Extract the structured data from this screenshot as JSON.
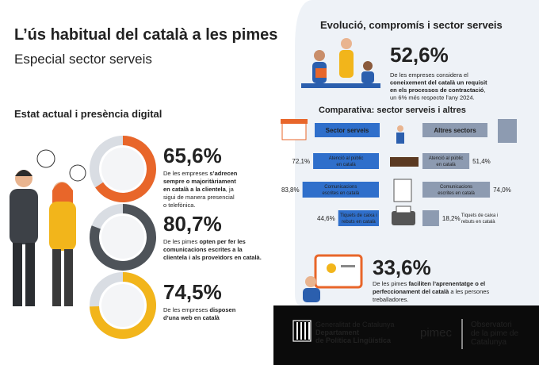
{
  "header": {
    "title": "L’ús habitual del català a les pimes",
    "subtitle": "Especial sector serveis"
  },
  "left": {
    "heading": "Estat actual i presència digital",
    "stats": [
      {
        "value": {
          "value": 65.6,
          "label": "65,6%"
        },
        "color": "#e8662a",
        "lines": [
          [
            {
              "text": "De les empreses ",
              "bold": false
            },
            {
              "text": "s’adrecen",
              "bold": true
            }
          ],
          [
            {
              "text": "sempre o majoritàriament",
              "bold": true
            }
          ],
          [
            {
              "text": "en català a la clientela",
              "bold": true
            },
            {
              "text": ", ja",
              "bold": false
            }
          ],
          [
            {
              "text": "sigui de manera presencial",
              "bold": false
            }
          ],
          [
            {
              "text": "o telefònica.",
              "bold": false
            }
          ]
        ]
      },
      {
        "value": {
          "value": 80.7,
          "label": "80,7%"
        },
        "color": "#4e5359",
        "lines": [
          [
            {
              "text": "De les pimes ",
              "bold": false
            },
            {
              "text": "opten per fer les",
              "bold": true
            }
          ],
          [
            {
              "text": "comunicacions escrites a la",
              "bold": true
            }
          ],
          [
            {
              "text": "clientela i als proveïdors en català.",
              "bold": true
            }
          ]
        ]
      },
      {
        "value": {
          "value": 74.5,
          "label": "74,5%"
        },
        "color": "#f2b51b",
        "lines": [
          [
            {
              "text": "De les empreses ",
              "bold": false
            },
            {
              "text": "disposen",
              "bold": true
            }
          ],
          [
            {
              "text": "d’una web en català",
              "bold": true
            }
          ]
        ]
      }
    ]
  },
  "right": {
    "heading": "Evolució, compromís i sector serveis",
    "stat": {
      "value": {
        "value": 52.6,
        "label": "52,6%"
      },
      "color": "#2b5fae",
      "lines": [
        [
          {
            "text": "De les empreses considera el",
            "bold": false
          }
        ],
        [
          {
            "text": "coneixement del català un requisit",
            "bold": true
          }
        ],
        [
          {
            "text": "en els processos de contractació",
            "bold": true
          },
          {
            "text": ",",
            "bold": false
          }
        ],
        [
          {
            "text": "un 6% més respecte l’any 2024.",
            "bold": false
          }
        ]
      ]
    },
    "comparison": {
      "heading": "Comparativa: sector serveis i altres",
      "groups": [
        {
          "name": "Sector serveis",
          "color": "#2f6fcb"
        },
        {
          "name": "Altres sectors",
          "color": "#8d9bb1"
        }
      ],
      "rows": [
        {
          "label": [
            "Atenció al públic",
            "en català"
          ],
          "values": [
            {
              "value": 72.1,
              "label": "72,1%"
            },
            {
              "value": 51.4,
              "label": "51,4%"
            }
          ]
        },
        {
          "label": [
            "Comunicacions",
            "escrites en català"
          ],
          "values": [
            {
              "value": 83.8,
              "label": "83,8%"
            },
            {
              "value": 74.0,
              "label": "74,0%"
            }
          ]
        },
        {
          "label": [
            "Tiquets de caixa i",
            "rebuts en català"
          ],
          "values": [
            {
              "value": 44.6,
              "label": "44,6%"
            },
            {
              "value": 18.2,
              "label": "18,2%"
            }
          ]
        }
      ]
    },
    "stat2": {
      "value": {
        "value": 33.6,
        "label": "33,6%"
      },
      "color": "#e8662a",
      "lines": [
        [
          {
            "text": "De les pimes ",
            "bold": false
          },
          {
            "text": "faciliten l’aprenentatge o el",
            "bold": true
          }
        ],
        [
          {
            "text": "perfeccionament del català",
            "bold": true
          },
          {
            "text": " a les persones",
            "bold": false
          }
        ],
        [
          {
            "text": "treballadores.",
            "bold": false
          }
        ]
      ]
    }
  },
  "footer": {
    "generalitat": [
      "Generalitat de Catalunya",
      "Departament",
      "de Política Lingüística"
    ],
    "pimec": "pimec",
    "observatori": [
      "Observatori",
      "de la pime de",
      "Catalunya"
    ]
  }
}
